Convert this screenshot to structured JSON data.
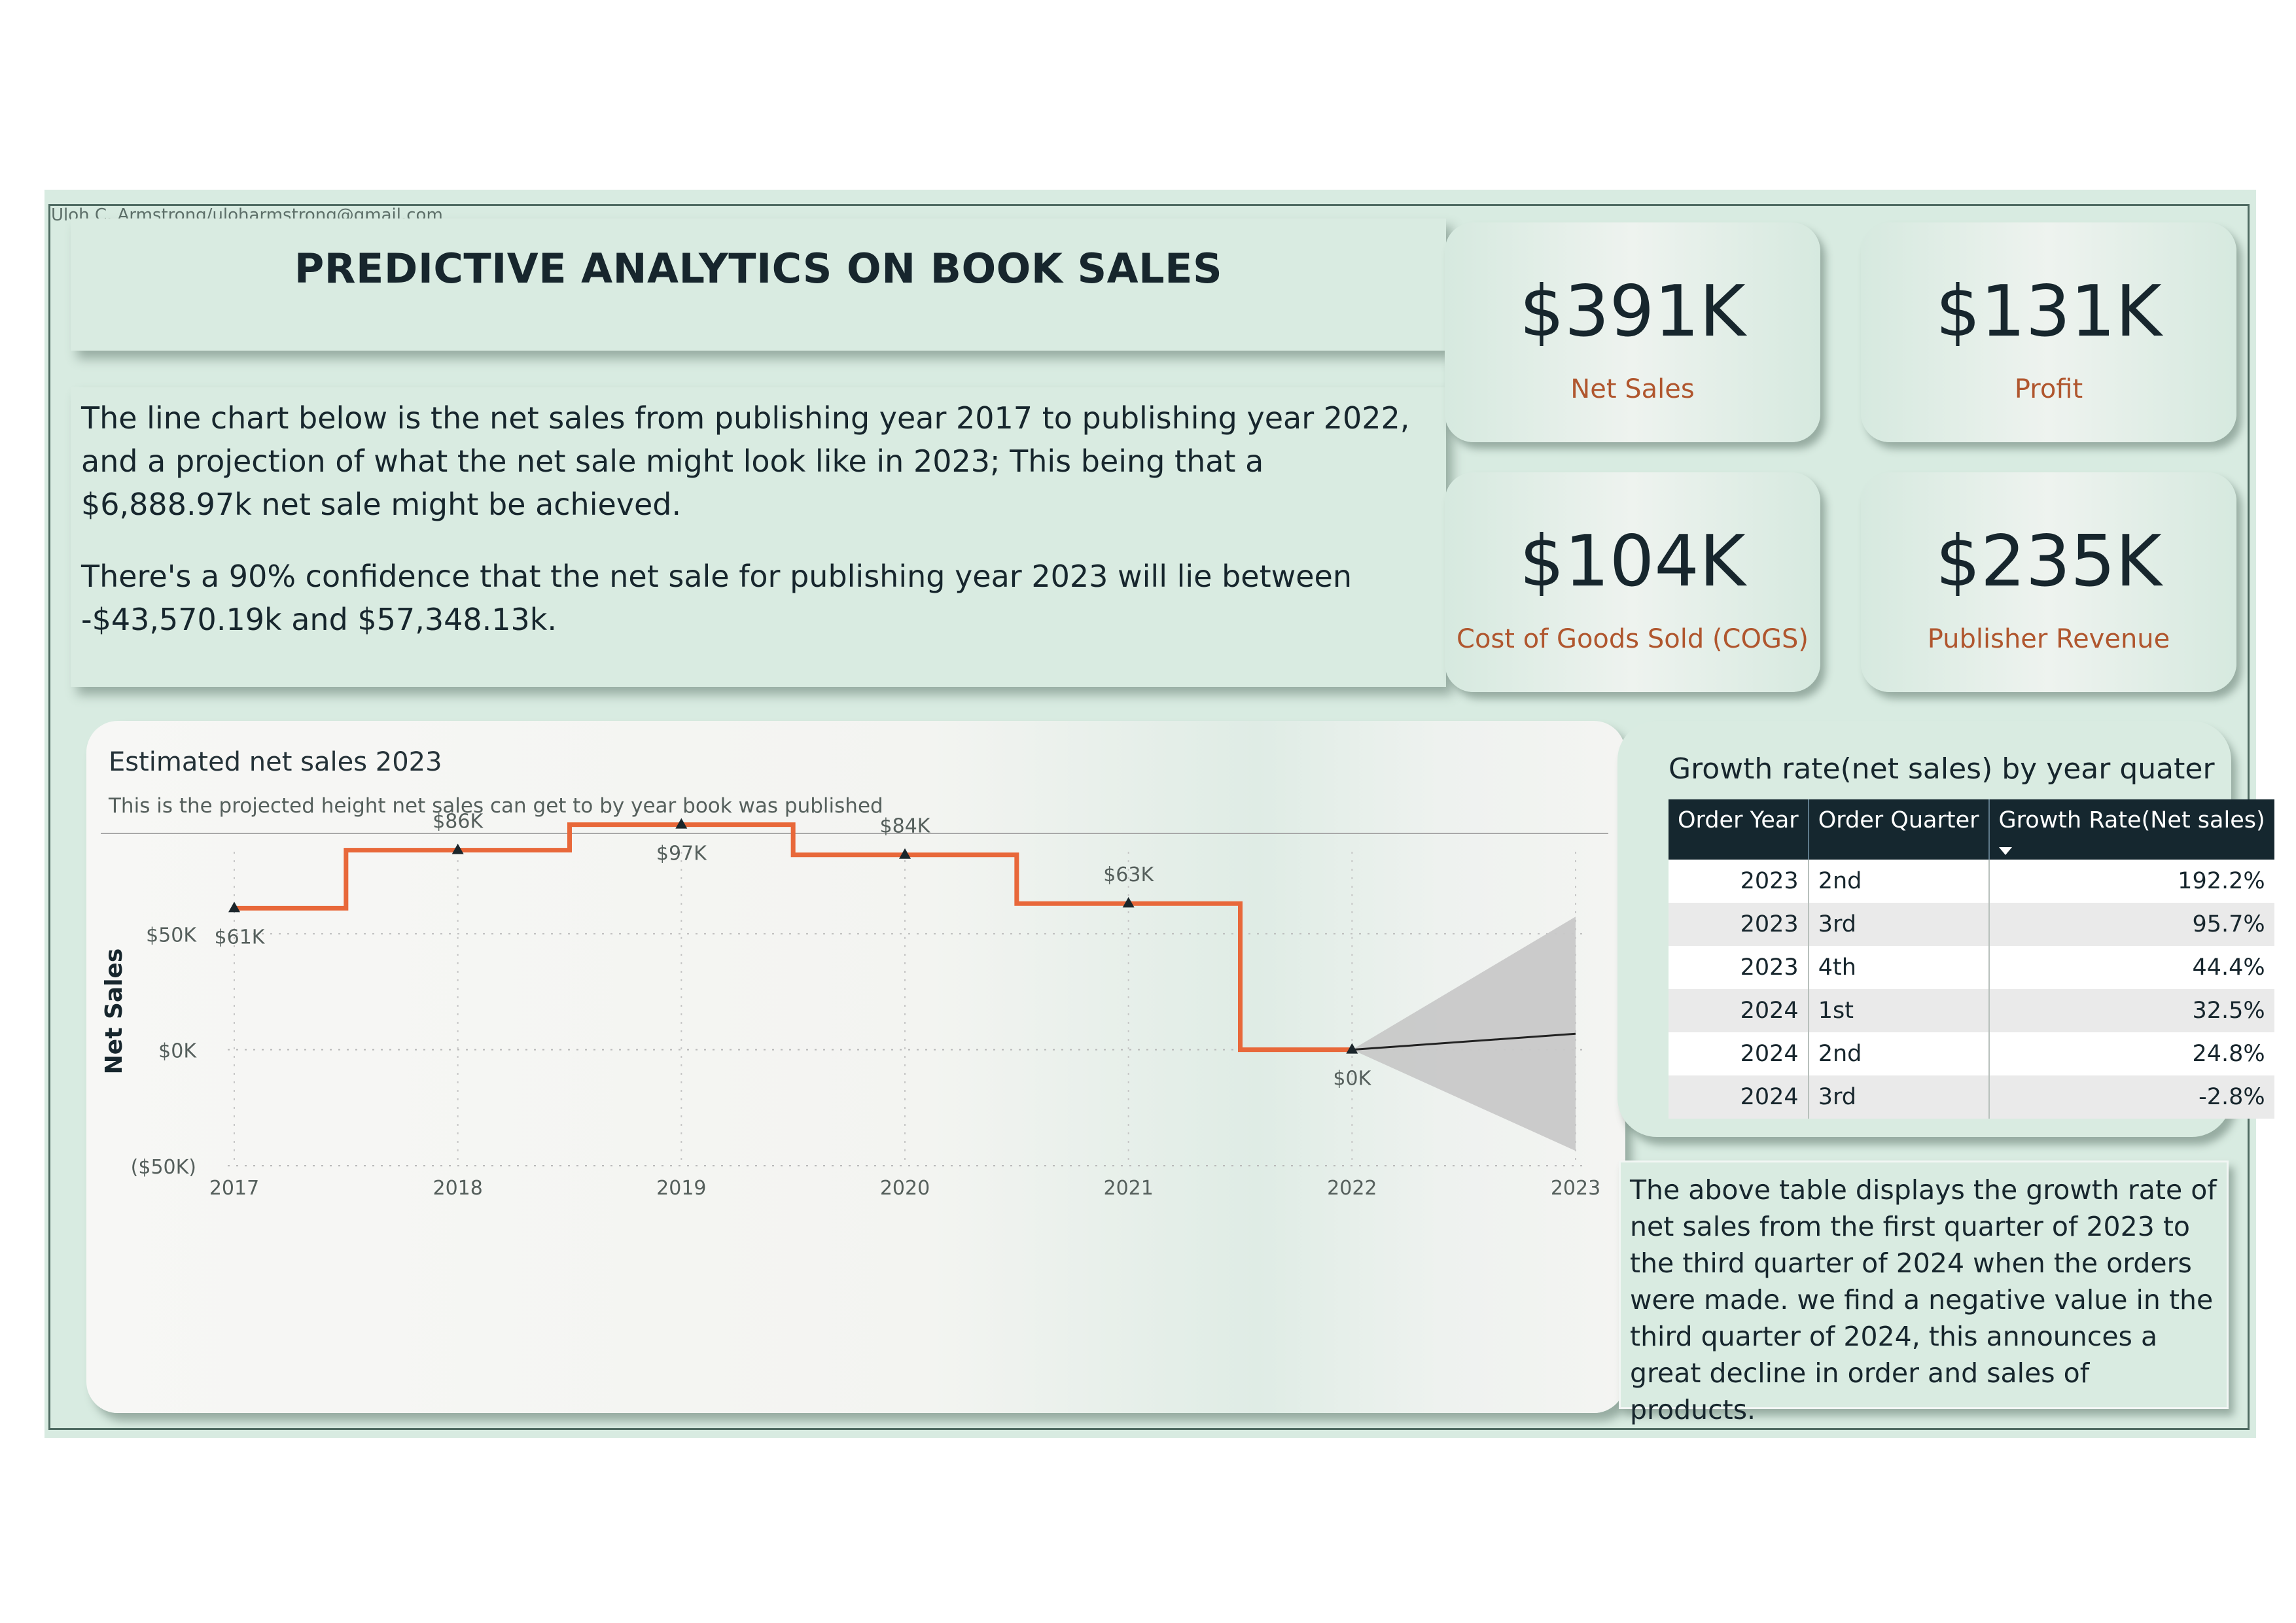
{
  "author": "Uloh C. Armstrong/uloharmstrong@gmail.com",
  "title": "PREDICTIVE ANALYTICS ON BOOK SALES",
  "description": {
    "p1": "The line chart below is the net sales from publishing year 2017 to publishing year 2022, and a projection of what the net sale might look like in 2023; This being that a $6,888.97k net sale might be achieved.",
    "p2": "There's a 90% confidence that the net sale for publishing year 2023 will lie between -$43,570.19k and $57,348.13k."
  },
  "kpis": [
    {
      "value": "$391K",
      "label": "Net Sales"
    },
    {
      "value": "$131K",
      "label": "Profit"
    },
    {
      "value": "$104K",
      "label": "Cost of Goods Sold (COGS)"
    },
    {
      "value": "$235K",
      "label": "Publisher Revenue"
    }
  ],
  "chart_data": {
    "type": "line",
    "title": "Estimated net sales 2023",
    "subtitle": "This is the projected height net sales can get to by year book was published",
    "ylabel": "Net Sales",
    "xlabel": "",
    "x": [
      2017,
      2018,
      2019,
      2020,
      2021,
      2022
    ],
    "values": [
      61,
      86,
      97,
      84,
      63,
      0
    ],
    "data_labels": [
      "$61K",
      "$86K",
      "$97K",
      "$84K",
      "$63K",
      "$0K"
    ],
    "x_ticks": [
      "2017",
      "2018",
      "2019",
      "2020",
      "2021",
      "2022",
      "2023"
    ],
    "y_ticks": [
      {
        "value": 50,
        "label": "$50K"
      },
      {
        "value": 0,
        "label": "$0K"
      },
      {
        "value": -50,
        "label": "($50K)"
      }
    ],
    "ylim": [
      -50,
      100
    ],
    "forecast": {
      "x": 2023,
      "value": 6.89,
      "lower": -43.57,
      "upper": 57.35
    },
    "colors": {
      "line": "#e8683a",
      "forecast": "#222222",
      "band": "#c8c8c8"
    },
    "grid": true,
    "units": "$K"
  },
  "growth_table": {
    "title": "Growth rate(net sales) by year quater",
    "columns": [
      "Order Year",
      "Order Quarter",
      "Growth Rate(Net sales)"
    ],
    "rows": [
      [
        "2023",
        "2nd",
        "192.2%"
      ],
      [
        "2023",
        "3rd",
        "95.7%"
      ],
      [
        "2023",
        "4th",
        "44.4%"
      ],
      [
        "2024",
        "1st",
        "32.5%"
      ],
      [
        "2024",
        "2nd",
        "24.8%"
      ],
      [
        "2024",
        "3rd",
        "-2.8%"
      ]
    ]
  },
  "note": "The above table displays the growth rate of net sales from the first quarter of 2023 to the third quarter of 2024 when the orders were made. we find a negative value in the third quarter of 2024, this announces a great decline in order and sales of products."
}
